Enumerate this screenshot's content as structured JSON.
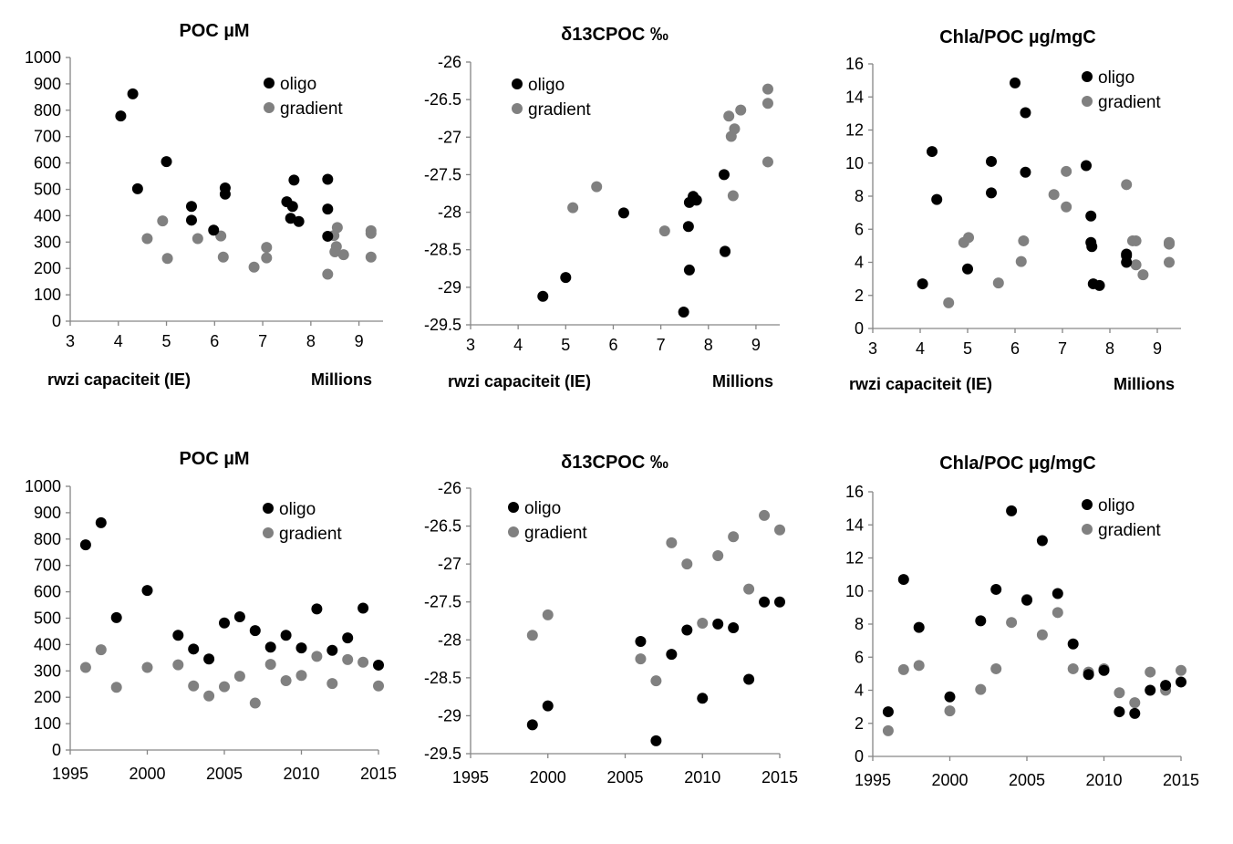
{
  "colors": {
    "oligo": "#000000",
    "gradient": "#808080"
  },
  "chart_data": [
    {
      "type": "scatter",
      "title": "POC µM",
      "xlabel": "rwzi capaciteit (IE)",
      "xunit": "Millions",
      "xlim": [
        3,
        9.5
      ],
      "ylim": [
        0,
        1000
      ],
      "xticks": [
        "3",
        "4",
        "5",
        "6",
        "7",
        "8",
        "9"
      ],
      "yticks": [
        "0",
        "100",
        "200",
        "300",
        "400",
        "500",
        "600",
        "700",
        "800",
        "900",
        "1000"
      ],
      "legend": "top-right",
      "series": [
        {
          "name": "oligo",
          "points": [
            [
              4.05,
              778
            ],
            [
              4.3,
              862
            ],
            [
              4.4,
              502
            ],
            [
              5.0,
              605
            ],
            [
              5.52,
              435
            ],
            [
              5.52,
              383
            ],
            [
              5.98,
              345
            ],
            [
              6.22,
              505
            ],
            [
              6.22,
              482
            ],
            [
              7.5,
              453
            ],
            [
              7.58,
              390
            ],
            [
              7.62,
              435
            ],
            [
              7.65,
              535
            ],
            [
              7.75,
              378
            ],
            [
              8.35,
              538
            ],
            [
              8.35,
              425
            ],
            [
              8.35,
              322
            ]
          ]
        },
        {
          "name": "gradient",
          "points": [
            [
              4.6,
              313
            ],
            [
              4.92,
              380
            ],
            [
              5.02,
              238
            ],
            [
              5.65,
              313
            ],
            [
              6.13,
              323
            ],
            [
              6.18,
              243
            ],
            [
              6.82,
              205
            ],
            [
              7.08,
              280
            ],
            [
              7.08,
              240
            ],
            [
              8.35,
              178
            ],
            [
              8.48,
              325
            ],
            [
              8.5,
              263
            ],
            [
              8.53,
              283
            ],
            [
              8.55,
              355
            ],
            [
              8.68,
              252
            ],
            [
              9.25,
              343
            ],
            [
              9.25,
              333
            ],
            [
              9.25,
              243
            ]
          ]
        }
      ]
    },
    {
      "type": "scatter",
      "title": "δ13CPOC ‰",
      "xlabel": "rwzi capaciteit (IE)",
      "xunit": "Millions",
      "xlim": [
        3,
        9.5
      ],
      "ylim": [
        -29.5,
        -26
      ],
      "xticks": [
        "3",
        "4",
        "5",
        "6",
        "7",
        "8",
        "9"
      ],
      "yticks": [
        "-29.5",
        "-29",
        "-28.5",
        "-28",
        "-27.5",
        "-27",
        "-26.5",
        "-26"
      ],
      "legend": "top-left",
      "series": [
        {
          "name": "oligo",
          "points": [
            [
              4.52,
              -29.12
            ],
            [
              5.0,
              -28.87
            ],
            [
              6.22,
              -28.01
            ],
            [
              7.48,
              -29.33
            ],
            [
              7.58,
              -28.19
            ],
            [
              7.6,
              -28.77
            ],
            [
              7.6,
              -27.87
            ],
            [
              7.68,
              -27.79
            ],
            [
              7.75,
              -27.84
            ],
            [
              8.33,
              -27.5
            ],
            [
              8.35,
              -28.52
            ]
          ]
        },
        {
          "name": "gradient",
          "points": [
            [
              5.15,
              -27.94
            ],
            [
              5.65,
              -27.66
            ],
            [
              7.08,
              -28.25
            ],
            [
              8.35,
              -28.53
            ],
            [
              8.43,
              -26.72
            ],
            [
              8.48,
              -26.99
            ],
            [
              8.52,
              -27.78
            ],
            [
              8.55,
              -26.89
            ],
            [
              8.68,
              -26.64
            ],
            [
              9.25,
              -27.33
            ],
            [
              9.25,
              -26.55
            ],
            [
              9.25,
              -26.36
            ]
          ]
        }
      ]
    },
    {
      "type": "scatter",
      "title": "Chla/POC µg/mgC",
      "xlabel": "rwzi capaciteit (IE)",
      "xunit": "Millions",
      "xlim": [
        3,
        9.5
      ],
      "ylim": [
        0,
        16
      ],
      "xticks": [
        "3",
        "4",
        "5",
        "6",
        "7",
        "8",
        "9"
      ],
      "yticks": [
        "0",
        "2",
        "4",
        "6",
        "8",
        "10",
        "12",
        "14",
        "16"
      ],
      "legend": "top-right",
      "series": [
        {
          "name": "oligo",
          "points": [
            [
              4.05,
              2.7
            ],
            [
              4.25,
              10.7
            ],
            [
              4.35,
              7.8
            ],
            [
              5.0,
              3.6
            ],
            [
              5.5,
              10.1
            ],
            [
              5.5,
              8.2
            ],
            [
              6.0,
              14.85
            ],
            [
              6.22,
              13.05
            ],
            [
              6.22,
              9.45
            ],
            [
              7.5,
              9.85
            ],
            [
              7.6,
              6.8
            ],
            [
              7.6,
              5.2
            ],
            [
              7.62,
              4.95
            ],
            [
              7.65,
              2.7
            ],
            [
              7.78,
              2.6
            ],
            [
              8.35,
              4.4
            ],
            [
              8.35,
              4.5
            ],
            [
              8.35,
              4.0
            ]
          ]
        },
        {
          "name": "gradient",
          "points": [
            [
              4.6,
              1.55
            ],
            [
              4.92,
              5.2
            ],
            [
              5.02,
              5.5
            ],
            [
              5.65,
              2.75
            ],
            [
              6.13,
              4.05
            ],
            [
              6.18,
              5.3
            ],
            [
              6.82,
              8.1
            ],
            [
              7.08,
              7.35
            ],
            [
              7.08,
              9.5
            ],
            [
              8.35,
              8.7
            ],
            [
              8.48,
              5.3
            ],
            [
              8.55,
              5.3
            ],
            [
              8.55,
              3.85
            ],
            [
              8.7,
              3.25
            ],
            [
              9.25,
              5.1
            ],
            [
              9.25,
              5.2
            ],
            [
              9.25,
              4.0
            ]
          ]
        }
      ]
    },
    {
      "type": "scatter",
      "title": "POC µM",
      "xlabel": "",
      "xunit": "",
      "xlim": [
        1995,
        2015
      ],
      "ylim": [
        0,
        1000
      ],
      "xticks": [
        "1995",
        "2000",
        "2005",
        "2010",
        "2015"
      ],
      "yticks": [
        "0",
        "100",
        "200",
        "300",
        "400",
        "500",
        "600",
        "700",
        "800",
        "900",
        "1000"
      ],
      "legend": "top-right",
      "series": [
        {
          "name": "oligo",
          "points": [
            [
              1996,
              778
            ],
            [
              1997,
              862
            ],
            [
              1998,
              502
            ],
            [
              2000,
              605
            ],
            [
              2002,
              435
            ],
            [
              2003,
              383
            ],
            [
              2004,
              345
            ],
            [
              2005,
              482
            ],
            [
              2006,
              505
            ],
            [
              2007,
              453
            ],
            [
              2008,
              390
            ],
            [
              2009,
              435
            ],
            [
              2010,
              387
            ],
            [
              2011,
              535
            ],
            [
              2012,
              378
            ],
            [
              2013,
              425
            ],
            [
              2014,
              538
            ],
            [
              2015,
              322
            ]
          ]
        },
        {
          "name": "gradient",
          "points": [
            [
              1996,
              313
            ],
            [
              1997,
              380
            ],
            [
              1998,
              238
            ],
            [
              2000,
              313
            ],
            [
              2002,
              323
            ],
            [
              2003,
              243
            ],
            [
              2004,
              205
            ],
            [
              2005,
              240
            ],
            [
              2006,
              280
            ],
            [
              2007,
              178
            ],
            [
              2008,
              325
            ],
            [
              2009,
              263
            ],
            [
              2010,
              283
            ],
            [
              2011,
              355
            ],
            [
              2012,
              252
            ],
            [
              2013,
              343
            ],
            [
              2014,
              333
            ],
            [
              2015,
              243
            ]
          ]
        }
      ]
    },
    {
      "type": "scatter",
      "title": "δ13CPOC ‰",
      "xlabel": "",
      "xunit": "",
      "xlim": [
        1995,
        2015
      ],
      "ylim": [
        -29.5,
        -26
      ],
      "xticks": [
        "1995",
        "2000",
        "2005",
        "2010",
        "2015"
      ],
      "yticks": [
        "-29.5",
        "-29",
        "-28.5",
        "-28",
        "-27.5",
        "-27",
        "-26.5",
        "-26"
      ],
      "legend": "top-left",
      "series": [
        {
          "name": "oligo",
          "points": [
            [
              1999,
              -29.12
            ],
            [
              2000,
              -28.87
            ],
            [
              2006,
              -28.02
            ],
            [
              2007,
              -29.33
            ],
            [
              2008,
              -28.19
            ],
            [
              2009,
              -27.87
            ],
            [
              2010,
              -28.77
            ],
            [
              2011,
              -27.79
            ],
            [
              2012,
              -27.84
            ],
            [
              2013,
              -28.52
            ],
            [
              2014,
              -27.5
            ],
            [
              2015,
              -27.5
            ]
          ]
        },
        {
          "name": "gradient",
          "points": [
            [
              1999,
              -27.94
            ],
            [
              2000,
              -27.67
            ],
            [
              2006,
              -28.25
            ],
            [
              2007,
              -28.54
            ],
            [
              2008,
              -26.72
            ],
            [
              2009,
              -27.0
            ],
            [
              2010,
              -27.78
            ],
            [
              2011,
              -26.89
            ],
            [
              2012,
              -26.64
            ],
            [
              2013,
              -27.33
            ],
            [
              2014,
              -26.36
            ],
            [
              2015,
              -26.55
            ]
          ]
        }
      ]
    },
    {
      "type": "scatter",
      "title": "Chla/POC µg/mgC",
      "xlabel": "",
      "xunit": "",
      "xlim": [
        1995,
        2015
      ],
      "ylim": [
        0,
        16
      ],
      "xticks": [
        "1995",
        "2000",
        "2005",
        "2010",
        "2015"
      ],
      "yticks": [
        "0",
        "2",
        "4",
        "6",
        "8",
        "10",
        "12",
        "14",
        "16"
      ],
      "legend": "top-right",
      "series": [
        {
          "name": "oligo",
          "points": [
            [
              1996,
              2.7
            ],
            [
              1997,
              10.7
            ],
            [
              1998,
              7.8
            ],
            [
              2000,
              3.6
            ],
            [
              2002,
              8.2
            ],
            [
              2003,
              10.1
            ],
            [
              2004,
              14.85
            ],
            [
              2005,
              9.45
            ],
            [
              2006,
              13.05
            ],
            [
              2007,
              9.85
            ],
            [
              2008,
              6.8
            ],
            [
              2009,
              4.95
            ],
            [
              2010,
              5.2
            ],
            [
              2011,
              2.7
            ],
            [
              2012,
              2.6
            ],
            [
              2013,
              4.0
            ],
            [
              2014,
              4.3
            ],
            [
              2015,
              4.5
            ]
          ]
        },
        {
          "name": "gradient",
          "points": [
            [
              1996,
              1.55
            ],
            [
              1997,
              5.25
            ],
            [
              1998,
              5.5
            ],
            [
              2000,
              2.75
            ],
            [
              2002,
              4.05
            ],
            [
              2003,
              5.3
            ],
            [
              2004,
              8.1
            ],
            [
              2005,
              9.5
            ],
            [
              2006,
              7.35
            ],
            [
              2007,
              8.7
            ],
            [
              2008,
              5.3
            ],
            [
              2009,
              5.1
            ],
            [
              2010,
              5.3
            ],
            [
              2011,
              3.85
            ],
            [
              2012,
              3.25
            ],
            [
              2013,
              5.1
            ],
            [
              2014,
              4.0
            ],
            [
              2015,
              5.2
            ]
          ]
        }
      ]
    }
  ]
}
